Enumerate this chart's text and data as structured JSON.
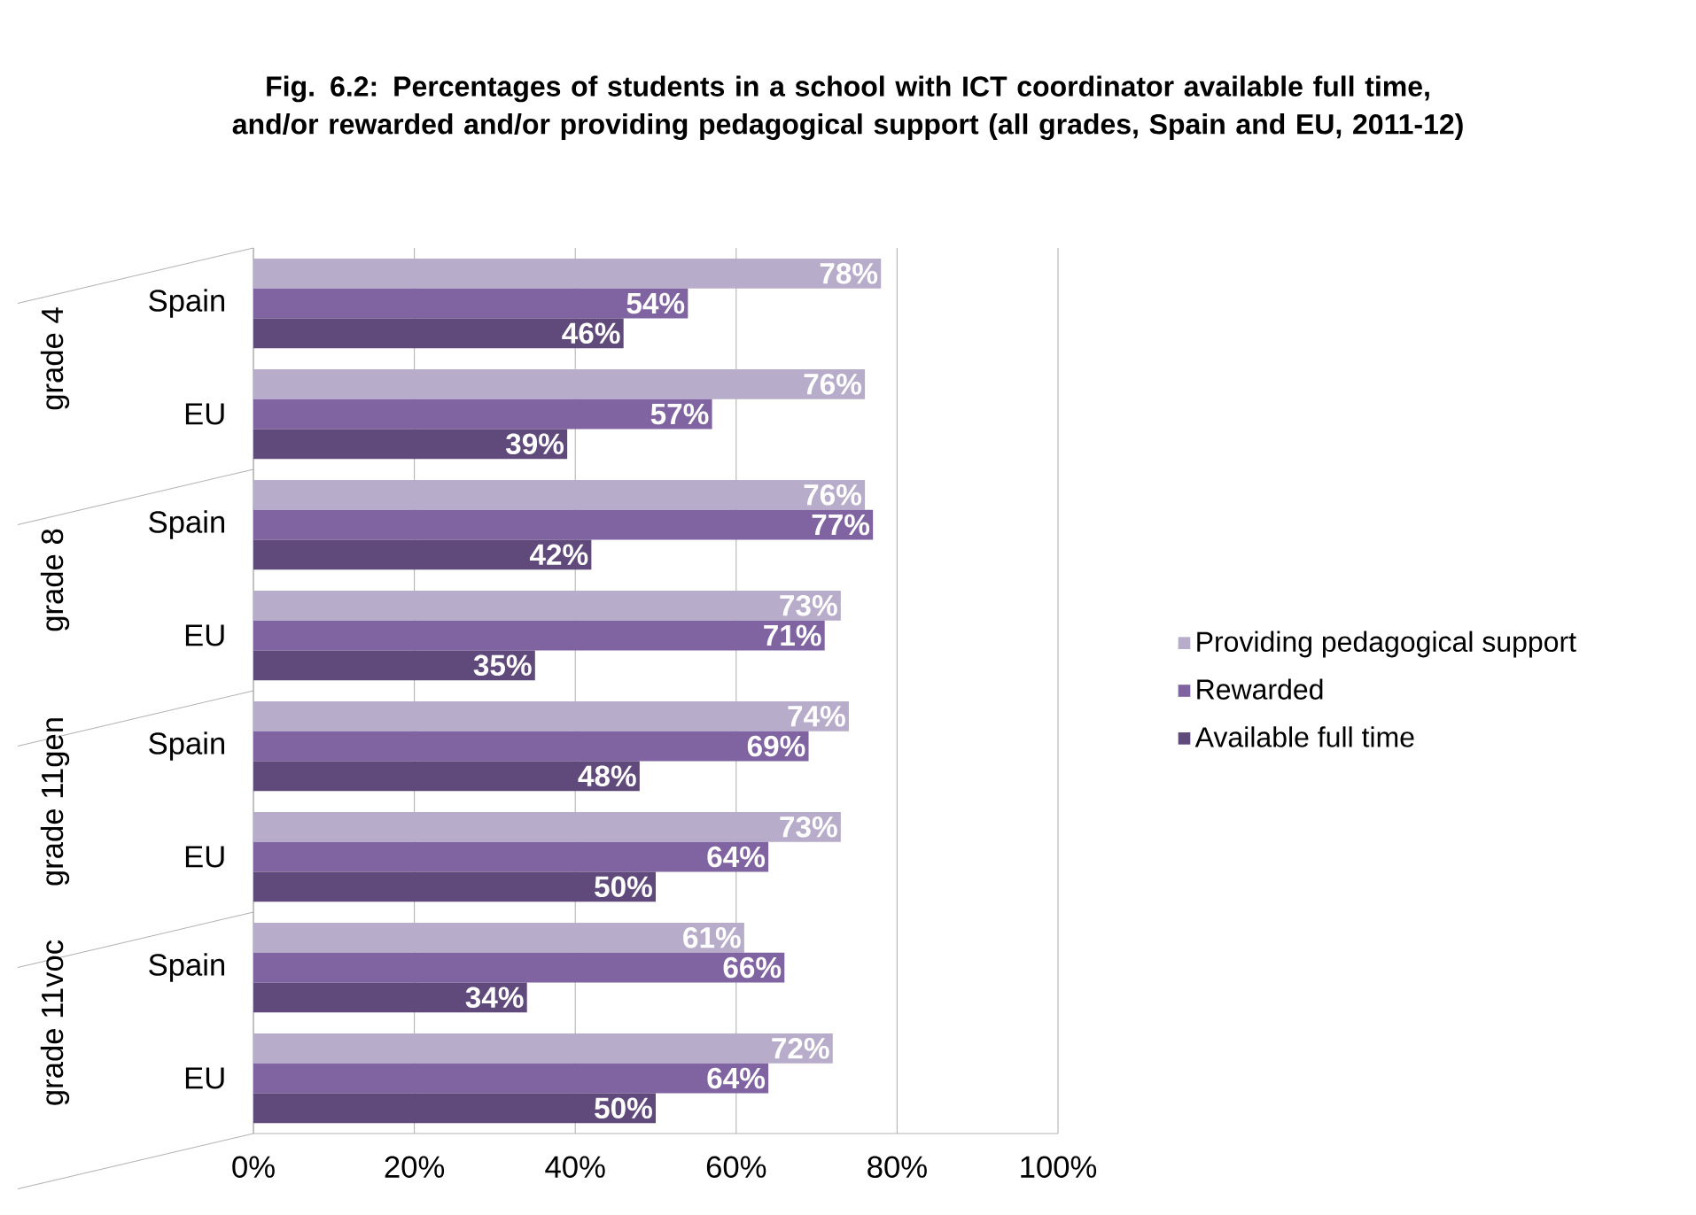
{
  "chart_data": {
    "type": "bar",
    "orientation": "horizontal",
    "title": "Fig. 6.2: Percentages of students in a school with ICT coordinator available full time, and/or rewarded and/or providing pedagogical support (all grades, Spain and EU, 2011-12)",
    "categories": [
      "Spain",
      "EU",
      "Spain",
      "EU",
      "Spain",
      "EU",
      "Spain",
      "EU"
    ],
    "annotations": [
      "grade 4",
      "grade 8",
      "grade 11gen",
      "grade 11voc"
    ],
    "series": [
      {
        "name": "Providing pedagogical support",
        "color": "#b8accb",
        "values": [
          78,
          76,
          76,
          73,
          74,
          73,
          61,
          72
        ],
        "value_labels": [
          "78%",
          "76%",
          "76%",
          "73%",
          "74%",
          "73%",
          "61%",
          "72%"
        ]
      },
      {
        "name": "Rewarded",
        "color": "#8064a2",
        "values": [
          54,
          57,
          77,
          71,
          69,
          64,
          66,
          64
        ],
        "value_labels": [
          "54%",
          "57%",
          "77%",
          "71%",
          "69%",
          "64%",
          "66%",
          "64%"
        ]
      },
      {
        "name": "Available full time",
        "color": "#604a7b",
        "values": [
          46,
          39,
          42,
          35,
          48,
          50,
          34,
          50
        ],
        "value_labels": [
          "46%",
          "39%",
          "42%",
          "35%",
          "48%",
          "50%",
          "34%",
          "50%"
        ]
      }
    ],
    "xlim": [
      0,
      100
    ],
    "xticks": [
      {
        "value": 0,
        "label": "0%"
      },
      {
        "value": 20,
        "label": "20%"
      },
      {
        "value": 40,
        "label": "40%"
      },
      {
        "value": 60,
        "label": "60%"
      },
      {
        "value": 80,
        "label": "80%"
      },
      {
        "value": 100,
        "label": "100%"
      }
    ],
    "grid": "x",
    "legend": "right"
  }
}
